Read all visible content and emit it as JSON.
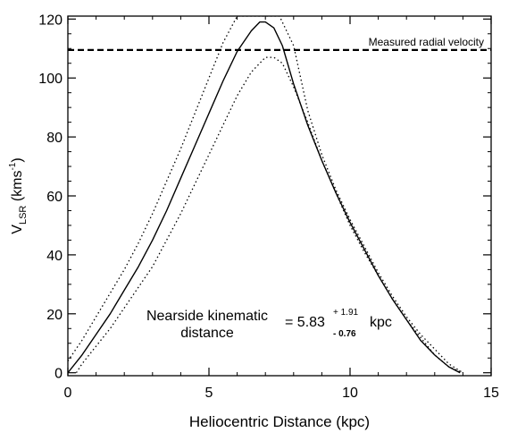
{
  "chart_data": {
    "type": "line",
    "xlabel": "Heliocentric Distance (kpc)",
    "ylabel": {
      "main": "V",
      "sub": "LSR",
      "unit_open": " (kms",
      "unit_sup": "-1",
      "unit_close": ")"
    },
    "xlim": [
      0,
      15
    ],
    "ylim": [
      -1,
      121
    ],
    "x_ticks": [
      0,
      5,
      10,
      15
    ],
    "y_ticks": [
      0,
      20,
      40,
      60,
      80,
      100,
      120
    ],
    "grid": false,
    "series": [
      {
        "style": "solid",
        "x": [
          0,
          0.5,
          1,
          1.5,
          2,
          2.5,
          3,
          3.5,
          4,
          4.5,
          5,
          5.5,
          6,
          6.5,
          6.8,
          7,
          7.3,
          7.6,
          8,
          8.5,
          9,
          9.5,
          10,
          10.5,
          11,
          11.5,
          12,
          12.5,
          13,
          13.5,
          13.9
        ],
        "y": [
          0,
          6,
          13,
          20,
          28,
          36,
          45,
          55,
          66,
          77,
          88,
          99,
          109,
          116,
          119,
          119,
          117,
          111,
          98,
          84,
          72,
          61,
          51,
          42,
          33,
          25,
          18,
          11,
          6,
          2,
          0
        ]
      },
      {
        "style": "dotted",
        "x": [
          0,
          0.5,
          1,
          1.5,
          2,
          2.5,
          3,
          3.5,
          4,
          4.5,
          5,
          5.5,
          6,
          6.5,
          7,
          7.5,
          8,
          8.5,
          9,
          9.5,
          10,
          10.5,
          11,
          11.5,
          12,
          12.5,
          13,
          13.5,
          14
        ],
        "y": [
          4,
          11,
          19,
          27,
          35,
          44,
          54,
          65,
          76,
          88,
          100,
          112,
          121,
          121,
          121,
          121,
          111,
          89,
          74,
          62,
          52,
          43,
          34,
          26,
          19,
          13,
          8,
          3,
          0
        ]
      },
      {
        "style": "dotted",
        "x": [
          0.3,
          0.5,
          1,
          1.5,
          2,
          2.5,
          3,
          3.5,
          4,
          4.5,
          5,
          5.5,
          6,
          6.5,
          7,
          7.3,
          7.6,
          8,
          8.5,
          9,
          9.5,
          10,
          10.5,
          11,
          11.5,
          12,
          12.5,
          13,
          13.5,
          14
        ],
        "y": [
          0,
          3,
          9,
          15,
          22,
          29,
          36,
          45,
          54,
          64,
          74,
          84,
          94,
          102,
          107,
          107,
          105,
          97,
          85,
          72,
          61,
          50,
          41,
          33,
          25,
          18,
          12,
          6,
          2,
          0
        ]
      }
    ],
    "reference_line": {
      "y": 109.5,
      "style": "dashed",
      "label": "Measured radial velocity"
    },
    "annotation": {
      "line1": "Nearside kinematic",
      "line2": "distance",
      "equation_prefix": "= 5.83",
      "sup": "+ 1.91",
      "sub": "- 0.76",
      "unit": "kpc"
    }
  }
}
